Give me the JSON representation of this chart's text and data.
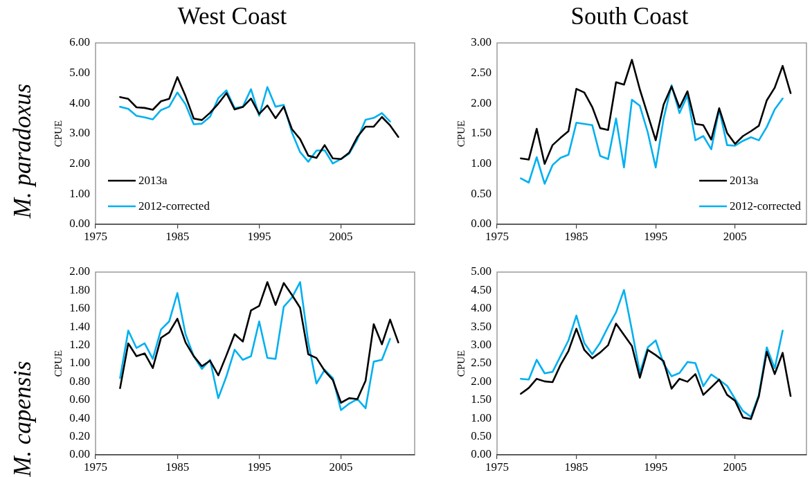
{
  "chart_data": [
    {
      "type": "line",
      "title": "West Coast",
      "ylabel": "CPUE",
      "annotations": [
        "M. paradoxus"
      ],
      "legend": "bottom left",
      "x": [
        1978,
        1979,
        1980,
        1981,
        1982,
        1983,
        1984,
        1985,
        1986,
        1987,
        1988,
        1989,
        1990,
        1991,
        1992,
        1993,
        1994,
        1995,
        1996,
        1997,
        1998,
        1999,
        2000,
        2001,
        2002,
        2003,
        2004,
        2005,
        2006,
        2007,
        2008,
        2009,
        2010,
        2011,
        2012
      ],
      "xlim": [
        1975,
        2014
      ],
      "xticks": [
        1975,
        1985,
        1995,
        2005
      ],
      "ylim": [
        0,
        6
      ],
      "yticks": [
        {
          "value": 0,
          "label": "0.00"
        },
        {
          "value": 1,
          "label": "1.00"
        },
        {
          "value": 2,
          "label": "2.00"
        },
        {
          "value": 3,
          "label": "3.00"
        },
        {
          "value": 4,
          "label": "4.00"
        },
        {
          "value": 5,
          "label": "5.00"
        },
        {
          "value": 6,
          "label": "6.00"
        }
      ],
      "series": [
        {
          "name": "2013a",
          "color": "#000000",
          "values": [
            4.21,
            4.15,
            3.87,
            3.85,
            3.79,
            4.07,
            4.15,
            4.87,
            4.24,
            3.5,
            3.45,
            3.69,
            3.99,
            4.34,
            3.8,
            3.88,
            4.16,
            3.65,
            3.93,
            3.51,
            3.89,
            3.15,
            2.82,
            2.27,
            2.2,
            2.62,
            2.18,
            2.16,
            2.37,
            2.89,
            3.23,
            3.23,
            3.55,
            3.27,
            2.89
          ]
        },
        {
          "name": "2012-corrected",
          "color": "#00b0f0",
          "values": [
            3.89,
            3.82,
            3.59,
            3.54,
            3.47,
            3.78,
            3.89,
            4.36,
            3.97,
            3.31,
            3.33,
            3.56,
            4.17,
            4.43,
            3.84,
            3.89,
            4.47,
            3.59,
            4.54,
            3.89,
            3.95,
            3.04,
            2.39,
            2.07,
            2.44,
            2.45,
            2.01,
            2.16,
            2.34,
            2.81,
            3.46,
            3.52,
            3.68,
            3.4,
            null
          ]
        }
      ]
    },
    {
      "type": "line",
      "title": "South Coast",
      "ylabel": "CPUE",
      "legend": "bottom right",
      "x": [
        1978,
        1979,
        1980,
        1981,
        1982,
        1983,
        1984,
        1985,
        1986,
        1987,
        1988,
        1989,
        1990,
        1991,
        1992,
        1993,
        1994,
        1995,
        1996,
        1997,
        1998,
        1999,
        2000,
        2001,
        2002,
        2003,
        2004,
        2005,
        2006,
        2007,
        2008,
        2009,
        2010,
        2011,
        2012
      ],
      "xlim": [
        1975,
        2014
      ],
      "xticks": [
        1975,
        1985,
        1995,
        2005
      ],
      "ylim": [
        0,
        3
      ],
      "yticks": [
        {
          "value": 0,
          "label": "0.00"
        },
        {
          "value": 0.5,
          "label": "0.50"
        },
        {
          "value": 1,
          "label": "1.00"
        },
        {
          "value": 1.5,
          "label": "1.50"
        },
        {
          "value": 2,
          "label": "2.00"
        },
        {
          "value": 2.5,
          "label": "2.50"
        },
        {
          "value": 3,
          "label": "3.00"
        }
      ],
      "series": [
        {
          "name": "2013a",
          "color": "#000000",
          "values": [
            1.09,
            1.07,
            1.58,
            1.0,
            1.31,
            1.43,
            1.54,
            2.24,
            2.18,
            1.94,
            1.59,
            1.56,
            2.35,
            2.31,
            2.72,
            2.23,
            1.81,
            1.39,
            1.98,
            2.28,
            1.93,
            2.2,
            1.66,
            1.64,
            1.4,
            1.92,
            1.51,
            1.33,
            1.46,
            1.54,
            1.63,
            2.05,
            2.26,
            2.62,
            2.17
          ]
        },
        {
          "name": "2012-corrected",
          "color": "#00b0f0",
          "values": [
            0.76,
            0.69,
            1.11,
            0.67,
            0.98,
            1.1,
            1.15,
            1.68,
            1.66,
            1.64,
            1.13,
            1.08,
            1.75,
            0.94,
            2.06,
            1.96,
            1.52,
            0.94,
            1.75,
            2.3,
            1.84,
            2.13,
            1.39,
            1.46,
            1.24,
            1.9,
            1.31,
            1.3,
            1.38,
            1.44,
            1.39,
            1.61,
            1.9,
            2.08,
            null
          ]
        }
      ]
    },
    {
      "type": "line",
      "ylabel": "CPUE",
      "annotations": [
        "M. capensis"
      ],
      "x": [
        1978,
        1979,
        1980,
        1981,
        1982,
        1983,
        1984,
        1985,
        1986,
        1987,
        1988,
        1989,
        1990,
        1991,
        1992,
        1993,
        1994,
        1995,
        1996,
        1997,
        1998,
        1999,
        2000,
        2001,
        2002,
        2003,
        2004,
        2005,
        2006,
        2007,
        2008,
        2009,
        2010,
        2011,
        2012
      ],
      "xlim": [
        1975,
        2014
      ],
      "xticks": [
        1975,
        1985,
        1995,
        2005
      ],
      "ylim": [
        0,
        2
      ],
      "yticks": [
        {
          "value": 0,
          "label": "0.00"
        },
        {
          "value": 0.2,
          "label": "0.20"
        },
        {
          "value": 0.4,
          "label": "0.40"
        },
        {
          "value": 0.6,
          "label": "0.60"
        },
        {
          "value": 0.8,
          "label": "0.80"
        },
        {
          "value": 1,
          "label": "1.00"
        },
        {
          "value": 1.2,
          "label": "1.20"
        },
        {
          "value": 1.4,
          "label": "1.40"
        },
        {
          "value": 1.6,
          "label": "1.60"
        },
        {
          "value": 1.8,
          "label": "1.80"
        },
        {
          "value": 2,
          "label": "2.00"
        }
      ],
      "series": [
        {
          "color": "#000000",
          "values": [
            0.73,
            1.22,
            1.08,
            1.11,
            0.95,
            1.28,
            1.34,
            1.49,
            1.23,
            1.08,
            0.97,
            1.03,
            0.87,
            1.09,
            1.32,
            1.24,
            1.58,
            1.63,
            1.89,
            1.64,
            1.88,
            1.75,
            1.61,
            1.1,
            1.06,
            0.92,
            0.82,
            0.57,
            0.62,
            0.61,
            0.81,
            1.43,
            1.21,
            1.48,
            1.23
          ]
        },
        {
          "color": "#00b0f0",
          "values": [
            0.84,
            1.36,
            1.17,
            1.22,
            1.05,
            1.37,
            1.46,
            1.77,
            1.32,
            1.08,
            0.94,
            1.04,
            0.62,
            0.86,
            1.15,
            1.04,
            1.08,
            1.46,
            1.06,
            1.05,
            1.62,
            1.72,
            1.89,
            1.23,
            0.78,
            0.93,
            0.84,
            0.49,
            0.56,
            0.61,
            0.51,
            1.02,
            1.04,
            1.27,
            null
          ]
        }
      ]
    },
    {
      "type": "line",
      "ylabel": "CPUE",
      "x": [
        1978,
        1979,
        1980,
        1981,
        1982,
        1983,
        1984,
        1985,
        1986,
        1987,
        1988,
        1989,
        1990,
        1991,
        1992,
        1993,
        1994,
        1995,
        1996,
        1997,
        1998,
        1999,
        2000,
        2001,
        2002,
        2003,
        2004,
        2005,
        2006,
        2007,
        2008,
        2009,
        2010,
        2011,
        2012
      ],
      "xlim": [
        1975,
        2014
      ],
      "xticks": [
        1975,
        1985,
        1995,
        2005
      ],
      "ylim": [
        0,
        5
      ],
      "yticks": [
        {
          "value": 0,
          "label": "0.00"
        },
        {
          "value": 0.5,
          "label": "0.50"
        },
        {
          "value": 1,
          "label": "1.00"
        },
        {
          "value": 1.5,
          "label": "1.50"
        },
        {
          "value": 2,
          "label": "2.00"
        },
        {
          "value": 2.5,
          "label": "2.50"
        },
        {
          "value": 3,
          "label": "3.00"
        },
        {
          "value": 3.5,
          "label": "3.50"
        },
        {
          "value": 4,
          "label": "4.00"
        },
        {
          "value": 4.5,
          "label": "4.50"
        },
        {
          "value": 5,
          "label": "5.00"
        }
      ],
      "series": [
        {
          "color": "#000000",
          "values": [
            1.67,
            1.83,
            2.08,
            2.01,
            1.99,
            2.46,
            2.84,
            3.45,
            2.87,
            2.64,
            2.8,
            3.0,
            3.59,
            3.28,
            2.98,
            2.11,
            2.87,
            2.73,
            2.56,
            1.81,
            2.08,
            2.0,
            2.21,
            1.64,
            1.85,
            2.06,
            1.64,
            1.48,
            1.02,
            0.98,
            1.6,
            2.82,
            2.21,
            2.79,
            1.61
          ]
        },
        {
          "color": "#00b0f0",
          "values": [
            2.08,
            2.06,
            2.6,
            2.23,
            2.27,
            2.7,
            3.13,
            3.81,
            3.06,
            2.75,
            3.07,
            3.5,
            3.9,
            4.51,
            3.41,
            2.24,
            2.94,
            3.13,
            2.49,
            2.15,
            2.24,
            2.54,
            2.51,
            1.88,
            2.2,
            2.05,
            1.89,
            1.53,
            1.2,
            1.04,
            1.64,
            2.94,
            2.37,
            3.4,
            null
          ]
        }
      ]
    }
  ]
}
